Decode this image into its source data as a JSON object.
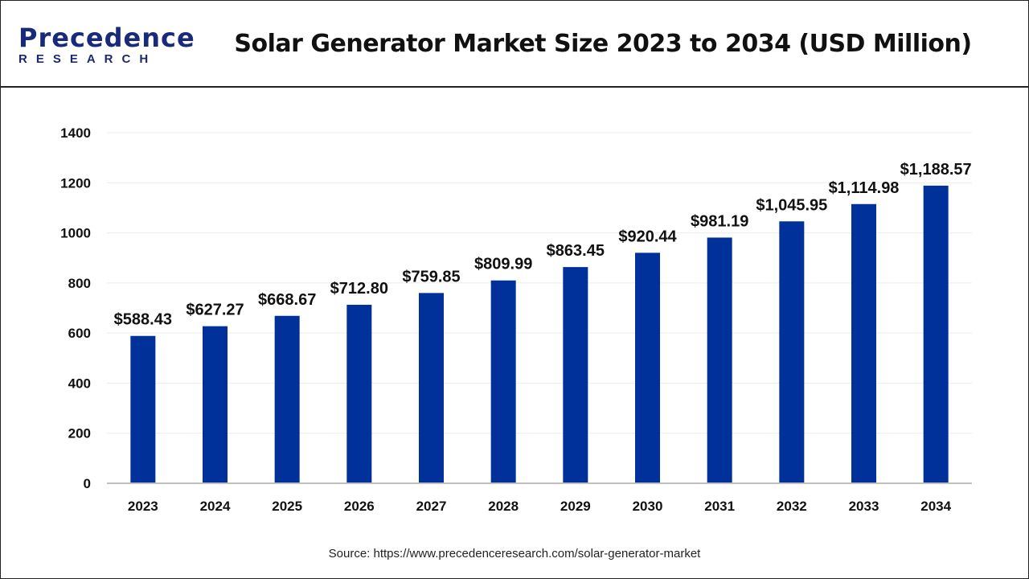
{
  "header": {
    "logo_top": "Precedence",
    "logo_bottom": "RESEARCH",
    "title": "Solar Generator Market Size 2023 to 2034 (USD Million)"
  },
  "source": "Source: https://www.precedenceresearch.com/solar-generator-market",
  "colors": {
    "bar": "#00319a",
    "grid": "#ececec",
    "axis": "#bfbfbf"
  },
  "chart_data": {
    "type": "bar",
    "title": "Solar Generator Market Size 2023 to 2034 (USD Million)",
    "categories": [
      "2023",
      "2024",
      "2025",
      "2026",
      "2027",
      "2028",
      "2029",
      "2030",
      "2031",
      "2032",
      "2033",
      "2034"
    ],
    "values": [
      588.43,
      627.27,
      668.67,
      712.8,
      759.85,
      809.99,
      863.45,
      920.44,
      981.19,
      1045.95,
      1114.98,
      1188.57
    ],
    "data_labels": [
      "$588.43",
      "$627.27",
      "$668.67",
      "$712.80",
      "$759.85",
      "$809.99",
      "$863.45",
      "$920.44",
      "$981.19",
      "$1,045.95",
      "$1,114.98",
      "$1,188.57"
    ],
    "yticks": [
      0,
      200,
      400,
      600,
      800,
      1000,
      1200,
      1400
    ],
    "ylim": [
      0,
      1400
    ],
    "xlabel": "",
    "ylabel": "",
    "grid": true,
    "legend": "none"
  }
}
